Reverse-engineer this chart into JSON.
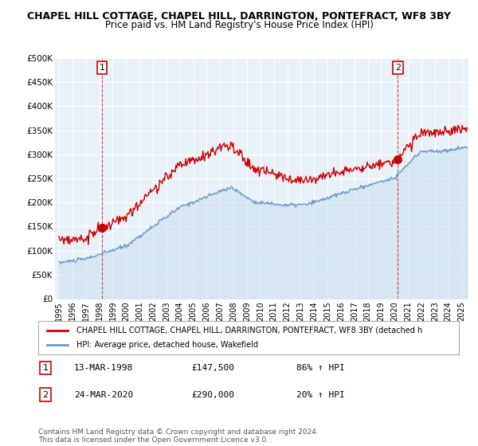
{
  "title": "CHAPEL HILL COTTAGE, CHAPEL HILL, DARRINGTON, PONTEFRACT, WF8 3BY",
  "subtitle": "Price paid vs. HM Land Registry's House Price Index (HPI)",
  "ylabel_ticks": [
    "£0",
    "£50K",
    "£100K",
    "£150K",
    "£200K",
    "£250K",
    "£300K",
    "£350K",
    "£400K",
    "£450K",
    "£500K"
  ],
  "ytick_values": [
    0,
    50000,
    100000,
    150000,
    200000,
    250000,
    300000,
    350000,
    400000,
    450000,
    500000
  ],
  "ylim": [
    0,
    500000
  ],
  "xlim_start": 1994.7,
  "xlim_end": 2025.5,
  "xtick_labels": [
    "1995",
    "1996",
    "1997",
    "1998",
    "1999",
    "2000",
    "2001",
    "2002",
    "2003",
    "2004",
    "2005",
    "2006",
    "2007",
    "2008",
    "2009",
    "2010",
    "2011",
    "2012",
    "2013",
    "2014",
    "2015",
    "2016",
    "2017",
    "2018",
    "2019",
    "2020",
    "2021",
    "2022",
    "2023",
    "2024",
    "2025"
  ],
  "sale1_x": 1998.2,
  "sale1_y": 147500,
  "sale1_label": "1",
  "sale2_x": 2020.23,
  "sale2_y": 290000,
  "sale2_label": "2",
  "property_color": "#cc0000",
  "hpi_color": "#99bbdd",
  "hpi_line_color": "#6699cc",
  "legend_property": "CHAPEL HILL COTTAGE, CHAPEL HILL, DARRINGTON, PONTEFRACT, WF8 3BY (detached h",
  "legend_hpi": "HPI: Average price, detached house, Wakefield",
  "annotation1_date": "13-MAR-1998",
  "annotation1_price": "£147,500",
  "annotation1_hpi": "86% ↑ HPI",
  "annotation2_date": "24-MAR-2020",
  "annotation2_price": "£290,000",
  "annotation2_hpi": "20% ↑ HPI",
  "footer": "Contains HM Land Registry data © Crown copyright and database right 2024.\nThis data is licensed under the Open Government Licence v3.0.",
  "background_color": "#ffffff",
  "plot_bg_color": "#e8f0f8",
  "grid_color": "#ffffff"
}
